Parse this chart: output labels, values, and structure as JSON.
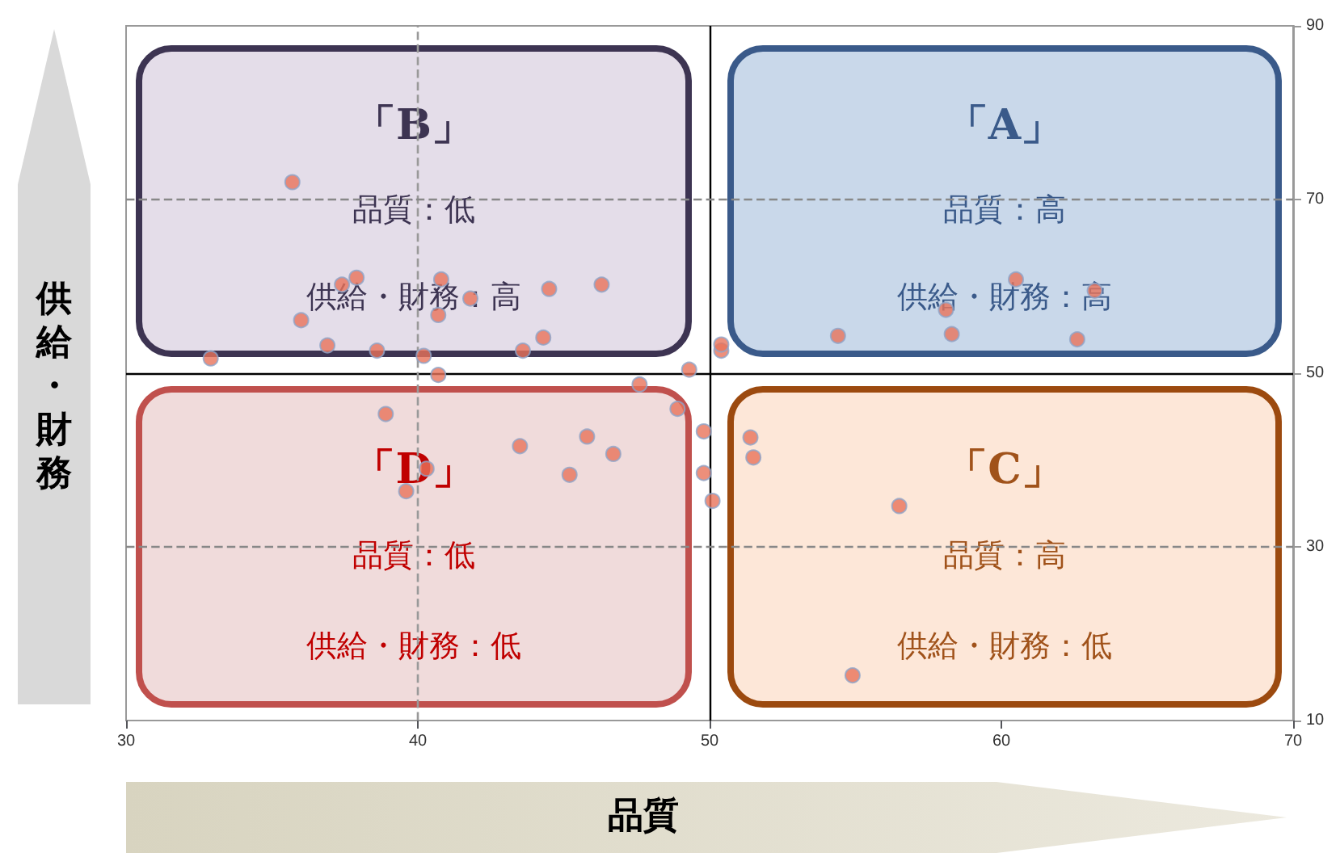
{
  "chart_data": {
    "type": "scatter",
    "xlabel": "品質",
    "ylabel": "供給・財務",
    "x": [
      35.7,
      37.4,
      37.9,
      36.0,
      32.9,
      36.9,
      38.6,
      40.8,
      41.8,
      40.7,
      40.2,
      40.7,
      43.6,
      44.3,
      44.5,
      46.3,
      47.6,
      49.3,
      50.4,
      50.4,
      48.9,
      49.8,
      49.8,
      50.1,
      51.4,
      51.5,
      56.5,
      54.4,
      58.3,
      58.1,
      60.5,
      63.2,
      62.6,
      54.9,
      38.9,
      39.6,
      40.3,
      43.5,
      45.8,
      46.7,
      45.2
    ],
    "values": [
      72.0,
      60.2,
      61.0,
      56.1,
      51.7,
      53.2,
      52.6,
      60.8,
      58.6,
      56.7,
      52.0,
      49.8,
      52.6,
      54.1,
      59.7,
      60.2,
      48.7,
      50.4,
      52.6,
      53.3,
      45.9,
      43.3,
      38.5,
      35.3,
      42.6,
      40.3,
      34.7,
      54.3,
      54.5,
      57.3,
      60.8,
      59.5,
      53.9,
      15.2,
      45.3,
      36.4,
      39.0,
      41.6,
      42.7,
      40.7,
      38.3
    ],
    "color": "#e8735a",
    "marker": "circle",
    "xlim": [
      30,
      70
    ],
    "xticks": [
      30,
      40,
      50,
      60,
      70
    ],
    "ylim": [
      10,
      90
    ],
    "yticks": [
      10,
      30,
      50,
      70,
      90
    ],
    "grid": false,
    "ref_lines": [
      {
        "axis": "x",
        "value": 50,
        "line_style": "solid",
        "color": "#000000"
      },
      {
        "axis": "y",
        "value": 50,
        "line_style": "solid",
        "color": "#000000"
      },
      {
        "axis": "x",
        "value": 40,
        "line_style": "dashed",
        "color": "#999999"
      },
      {
        "axis": "y",
        "value": 70,
        "line_style": "dashed",
        "color": "#888888"
      },
      {
        "axis": "y",
        "value": 30,
        "line_style": "dashed",
        "color": "#888888"
      }
    ],
    "annotations": [
      "「B」",
      "品質：低",
      "供給・財務：高",
      "「A」",
      "品質：高",
      "供給・財務：高",
      "「D」",
      "品質：低",
      "供給・財務：低",
      "「C」",
      "品質：高",
      "供給・財務：低"
    ]
  }
}
